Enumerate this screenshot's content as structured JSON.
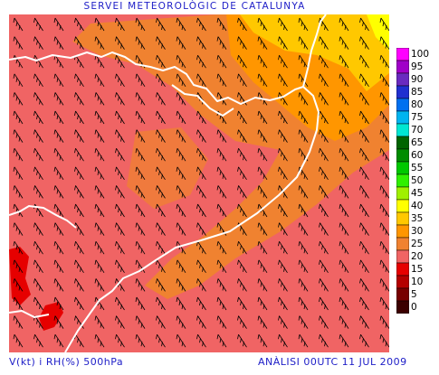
{
  "header": {
    "title": "SERVEI METEOROLÒGIC DE CATALUNYA"
  },
  "footer": {
    "variables": "V(kt) i RH(%) 500hPa",
    "analysis": "ANÀLISI 00UTC 11 JUL 2009"
  },
  "legend": {
    "items": [
      {
        "label": "100",
        "color": "#ff00ff"
      },
      {
        "label": "95",
        "color": "#a000c8"
      },
      {
        "label": "90",
        "color": "#6a2ac0"
      },
      {
        "label": "85",
        "color": "#2030d0"
      },
      {
        "label": "80",
        "color": "#0070f0"
      },
      {
        "label": "75",
        "color": "#00b4f0"
      },
      {
        "label": "70",
        "color": "#00e6d2"
      },
      {
        "label": "65",
        "color": "#006400"
      },
      {
        "label": "60",
        "color": "#008c00"
      },
      {
        "label": "55",
        "color": "#00c800"
      },
      {
        "label": "50",
        "color": "#30f000"
      },
      {
        "label": "45",
        "color": "#a0f000"
      },
      {
        "label": "40",
        "color": "#ffff00"
      },
      {
        "label": "35",
        "color": "#ffc800"
      },
      {
        "label": "30",
        "color": "#ff9600"
      },
      {
        "label": "25",
        "color": "#f08230"
      },
      {
        "label": "20",
        "color": "#f06464"
      },
      {
        "label": "15",
        "color": "#e60000"
      },
      {
        "label": "10",
        "color": "#b40000"
      },
      {
        "label": "5",
        "color": "#780000"
      },
      {
        "label": "0",
        "color": "#3c0000"
      }
    ]
  },
  "colors": {
    "base_field": "#f06464",
    "mid_field": "#f08230",
    "high_field": "#ff9600",
    "top_field": "#ffc800",
    "dry_field": "#e60000",
    "coastline": "#ffffff",
    "wind_barb": "#000000",
    "text": "#2020c8"
  }
}
